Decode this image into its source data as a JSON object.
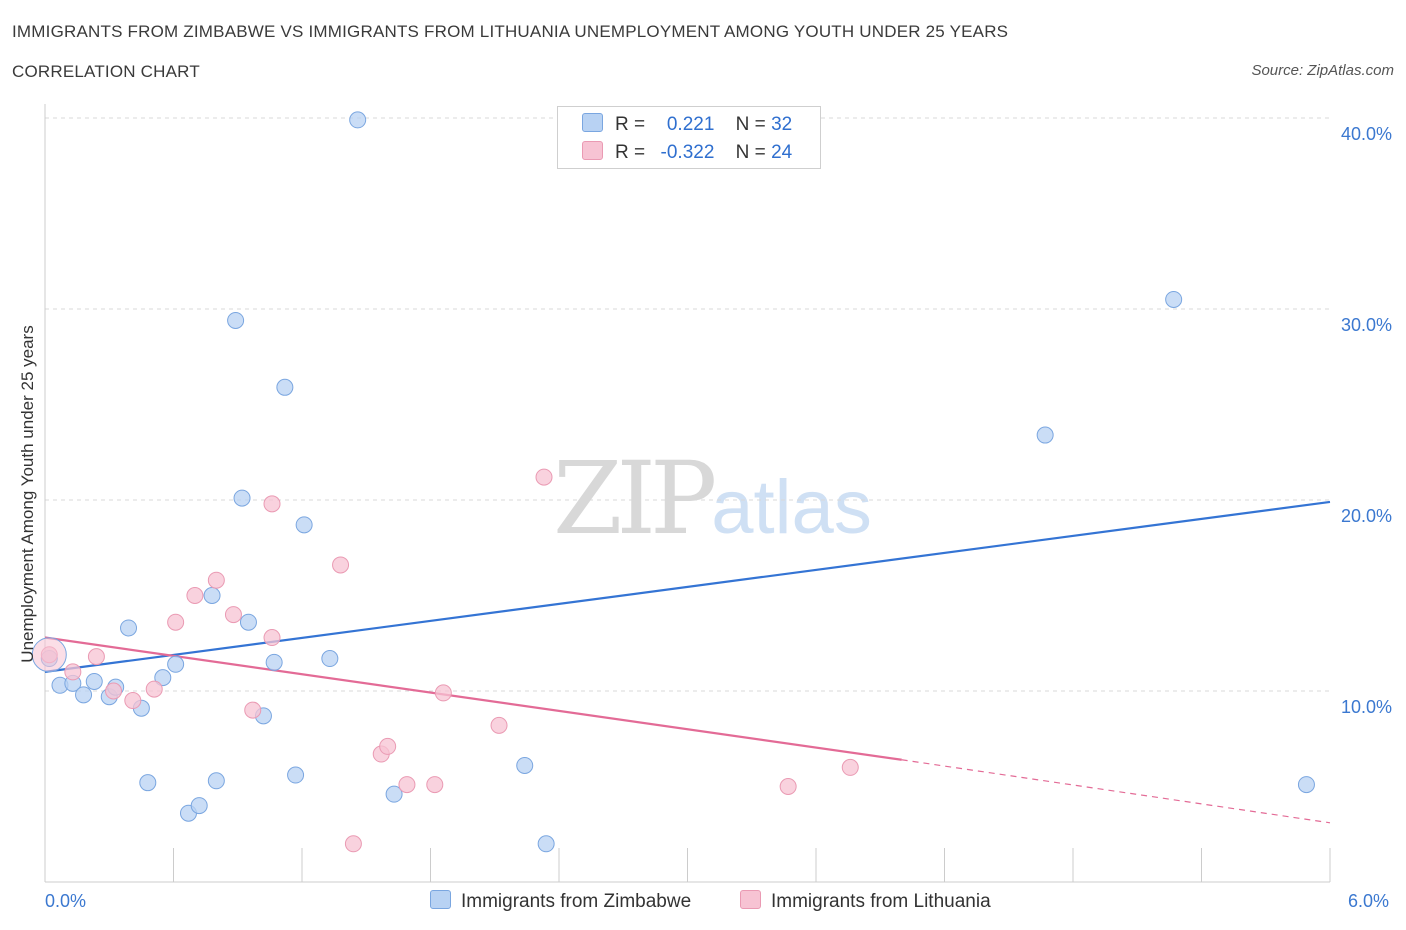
{
  "header": {
    "title": "IMMIGRANTS FROM ZIMBABWE VS IMMIGRANTS FROM LITHUANIA UNEMPLOYMENT AMONG YOUTH UNDER 25 YEARS",
    "subtitle": "CORRELATION CHART",
    "source": "Source: ZipAtlas.com"
  },
  "watermark": {
    "zip": "ZIP",
    "atlas": "atlas"
  },
  "legend": {
    "rows": [
      {
        "r_label": "R =",
        "r_value": "0.221",
        "n_label": "N =",
        "n_value": "32"
      },
      {
        "r_label": "R =",
        "r_value": "-0.322",
        "n_label": "N =",
        "n_value": "24"
      }
    ]
  },
  "colors": {
    "blue_fill": "#b8d2f3",
    "blue_stroke": "#7aa6e0",
    "blue_line": "#3474d4",
    "pink_fill": "#f7c3d3",
    "pink_stroke": "#ea9ab3",
    "pink_line": "#e36b96",
    "grid": "#d8d8d8",
    "axis": "#cccccc"
  },
  "chart_data": {
    "type": "scatter",
    "title": "IMMIGRANTS FROM ZIMBABWE VS IMMIGRANTS FROM LITHUANIA UNEMPLOYMENT AMONG YOUTH UNDER 25 YEARS",
    "xlabel": "",
    "ylabel": "Unemployment Among Youth under 25 years",
    "xlim": [
      0,
      6
    ],
    "ylim": [
      0,
      40
    ],
    "x_tick_labels": [
      "0.0%",
      "6.0%"
    ],
    "y_ticks": [
      10,
      20,
      30,
      40
    ],
    "y_tick_labels": [
      "10.0%",
      "20.0%",
      "30.0%",
      "40.0%"
    ],
    "grid": true,
    "legend_position": "bottom",
    "series": [
      {
        "name": "Immigrants from Zimbabwe",
        "color": "blue",
        "r": 0.221,
        "n": 32,
        "points": [
          [
            0.02,
            11.7
          ],
          [
            0.07,
            10.3
          ],
          [
            0.13,
            10.4
          ],
          [
            0.18,
            9.8
          ],
          [
            0.23,
            10.5
          ],
          [
            0.3,
            9.7
          ],
          [
            0.33,
            10.2
          ],
          [
            0.39,
            13.3
          ],
          [
            0.45,
            9.1
          ],
          [
            0.48,
            5.2
          ],
          [
            0.55,
            10.7
          ],
          [
            0.61,
            11.4
          ],
          [
            0.67,
            3.6
          ],
          [
            0.72,
            4.0
          ],
          [
            0.78,
            15.0
          ],
          [
            0.8,
            5.3
          ],
          [
            0.89,
            29.4
          ],
          [
            0.92,
            20.1
          ],
          [
            0.95,
            13.6
          ],
          [
            1.02,
            8.7
          ],
          [
            1.07,
            11.5
          ],
          [
            1.12,
            25.9
          ],
          [
            1.17,
            5.6
          ],
          [
            1.21,
            18.7
          ],
          [
            1.33,
            11.7
          ],
          [
            1.46,
            39.9
          ],
          [
            1.63,
            4.6
          ],
          [
            2.24,
            6.1
          ],
          [
            2.34,
            2.0
          ],
          [
            4.67,
            23.4
          ],
          [
            5.27,
            30.5
          ],
          [
            5.89,
            5.1
          ]
        ],
        "trend": {
          "x": [
            0,
            6
          ],
          "y": [
            11.0,
            19.9
          ]
        }
      },
      {
        "name": "Immigrants from Lithuania",
        "color": "pink",
        "r": -0.322,
        "n": 24,
        "points": [
          [
            0.02,
            11.9
          ],
          [
            0.13,
            11.0
          ],
          [
            0.24,
            11.8
          ],
          [
            0.32,
            10.0
          ],
          [
            0.41,
            9.5
          ],
          [
            0.51,
            10.1
          ],
          [
            0.61,
            13.6
          ],
          [
            0.7,
            15.0
          ],
          [
            0.8,
            15.8
          ],
          [
            0.88,
            14.0
          ],
          [
            0.97,
            9.0
          ],
          [
            1.06,
            12.8
          ],
          [
            1.06,
            19.8
          ],
          [
            1.38,
            16.6
          ],
          [
            1.44,
            2.0
          ],
          [
            1.57,
            6.7
          ],
          [
            1.6,
            7.1
          ],
          [
            1.69,
            5.1
          ],
          [
            1.82,
            5.1
          ],
          [
            1.86,
            9.9
          ],
          [
            2.12,
            8.2
          ],
          [
            2.33,
            21.2
          ],
          [
            3.47,
            5.0
          ],
          [
            3.76,
            6.0
          ]
        ],
        "trend": {
          "x": [
            0,
            4.0
          ],
          "y": [
            12.8,
            6.4
          ]
        },
        "trend_dashed": {
          "x": [
            4.0,
            6
          ],
          "y": [
            6.4,
            3.1
          ]
        }
      }
    ]
  }
}
